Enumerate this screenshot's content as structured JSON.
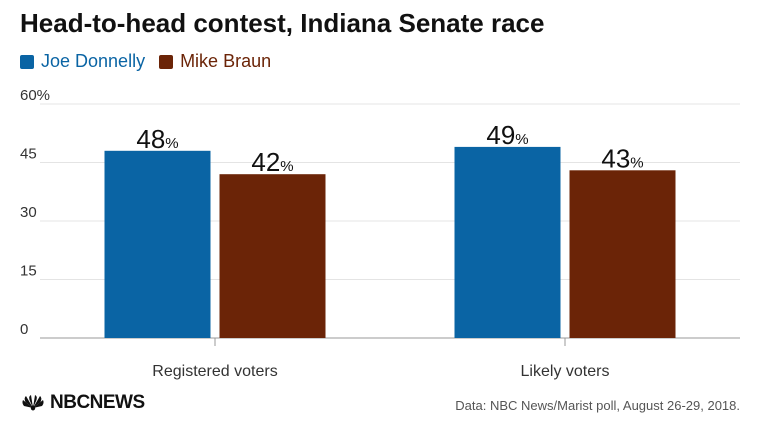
{
  "title": "Head-to-head contest, Indiana Senate race",
  "source": "Data: NBC News/Marist poll, August 26-29, 2018.",
  "logo_text": "NBCNEWS",
  "chart_data": {
    "type": "bar",
    "title": "Head-to-head contest, Indiana Senate race",
    "categories": [
      "Registered voters",
      "Likely voters"
    ],
    "series": [
      {
        "name": "Joe Donnelly",
        "color": "#0a64a4",
        "values": [
          48,
          49
        ]
      },
      {
        "name": "Mike Braun",
        "color": "#6b2407",
        "values": [
          42,
          43
        ]
      }
    ],
    "ylim": [
      0,
      60
    ],
    "yticks": [
      0,
      15,
      30,
      45,
      60
    ],
    "ytick_labels": [
      "0",
      "15",
      "30",
      "45",
      "60%"
    ],
    "value_suffix": "%",
    "grid": true,
    "legend_position": "top-left"
  }
}
